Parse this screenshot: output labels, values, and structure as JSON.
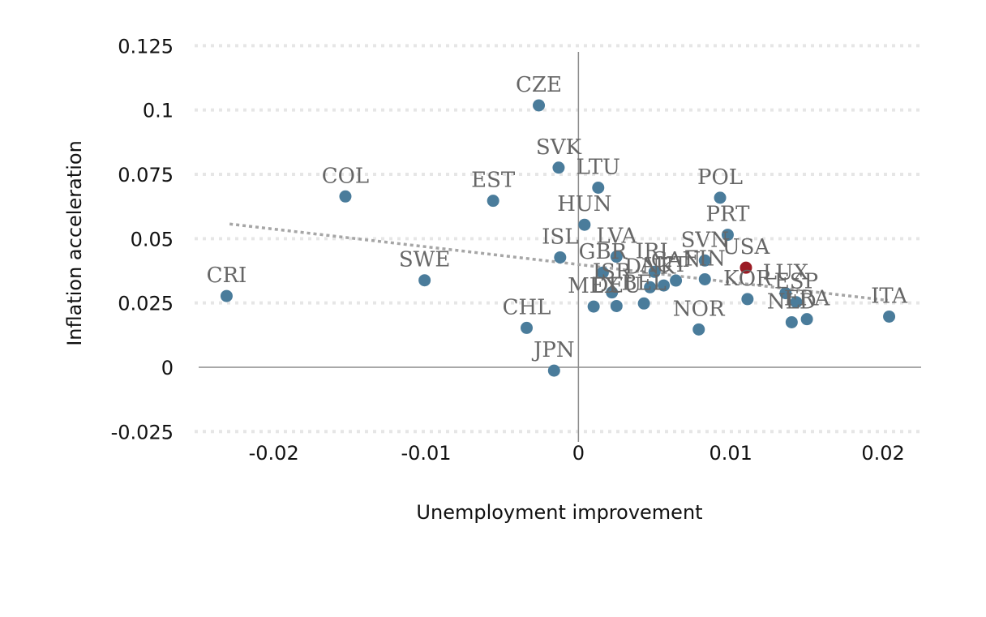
{
  "chart_data": {
    "type": "scatter",
    "title": "",
    "xlabel": "Unemployment improvement",
    "ylabel": "Inflation acceleration",
    "xlim": [
      -0.0252,
      0.0225
    ],
    "ylim": [
      -0.029,
      0.127
    ],
    "x_ticks": [
      -0.02,
      -0.01,
      0,
      0.01,
      0.02
    ],
    "x_tick_labels": [
      "-0.02",
      "-0.01",
      "0",
      "0.01",
      "0.02"
    ],
    "y_ticks": [
      -0.025,
      0,
      0.025,
      0.05,
      0.075,
      0.1,
      0.125
    ],
    "y_tick_labels": [
      "-0.025",
      "0",
      "0.025",
      "0.05",
      "0.075",
      "0.1",
      "0.125"
    ],
    "grid": "horizontal dotted",
    "colors": {
      "default": "#4a7c9b",
      "highlight": "#9b1b24",
      "trend": "#a6a6a6",
      "label": "#666666"
    },
    "trendline": {
      "x": [
        -0.0229,
        0.0203
      ],
      "y": [
        0.0557,
        0.026
      ]
    },
    "points": [
      {
        "label": "CZE",
        "x": -0.0026,
        "y": 0.1018
      },
      {
        "label": "SVK",
        "x": -0.0013,
        "y": 0.0776
      },
      {
        "label": "LTU",
        "x": 0.0013,
        "y": 0.0698
      },
      {
        "label": "COL",
        "x": -0.0153,
        "y": 0.0664
      },
      {
        "label": "EST",
        "x": -0.0056,
        "y": 0.0647
      },
      {
        "label": "POL",
        "x": 0.0093,
        "y": 0.0659
      },
      {
        "label": "HUN",
        "x": 0.0004,
        "y": 0.0554
      },
      {
        "label": "PRT",
        "x": 0.0098,
        "y": 0.0515
      },
      {
        "label": "ISL",
        "x": -0.0012,
        "y": 0.0427
      },
      {
        "label": "LVA",
        "x": 0.0025,
        "y": 0.043
      },
      {
        "label": "SVN",
        "x": 0.0083,
        "y": 0.0415
      },
      {
        "label": "USA",
        "x": 0.011,
        "y": 0.0387,
        "highlight": true
      },
      {
        "label": "SWE",
        "x": -0.0101,
        "y": 0.0338
      },
      {
        "label": "CRI",
        "x": -0.0231,
        "y": 0.0277
      },
      {
        "label": "GBR",
        "x": 0.0016,
        "y": 0.0368
      },
      {
        "label": "IRL",
        "x": 0.005,
        "y": 0.0371
      },
      {
        "label": "ISR",
        "x": 0.0022,
        "y": 0.0291
      },
      {
        "label": "DNK",
        "x": 0.0047,
        "y": 0.0311
      },
      {
        "label": "AUT",
        "x": 0.0056,
        "y": 0.0318
      },
      {
        "label": "CAN",
        "x": 0.0064,
        "y": 0.0337
      },
      {
        "label": "FIN",
        "x": 0.0083,
        "y": 0.0342
      },
      {
        "label": "MEX",
        "x": 0.001,
        "y": 0.0236
      },
      {
        "label": "DEU",
        "x": 0.0025,
        "y": 0.0238
      },
      {
        "label": "BEL",
        "x": 0.0043,
        "y": 0.0248
      },
      {
        "label": "KOR",
        "x": 0.0111,
        "y": 0.0265
      },
      {
        "label": "LUX",
        "x": 0.0136,
        "y": 0.0288
      },
      {
        "label": "ESP",
        "x": 0.0143,
        "y": 0.0253
      },
      {
        "label": "NLD",
        "x": 0.014,
        "y": 0.0175
      },
      {
        "label": "FRA",
        "x": 0.015,
        "y": 0.0187
      },
      {
        "label": "ITA",
        "x": 0.0204,
        "y": 0.0197
      },
      {
        "label": "CHL",
        "x": -0.0034,
        "y": 0.0153
      },
      {
        "label": "NOR",
        "x": 0.0079,
        "y": 0.0147
      },
      {
        "label": "JPN",
        "x": -0.0016,
        "y": -0.0013
      }
    ]
  }
}
